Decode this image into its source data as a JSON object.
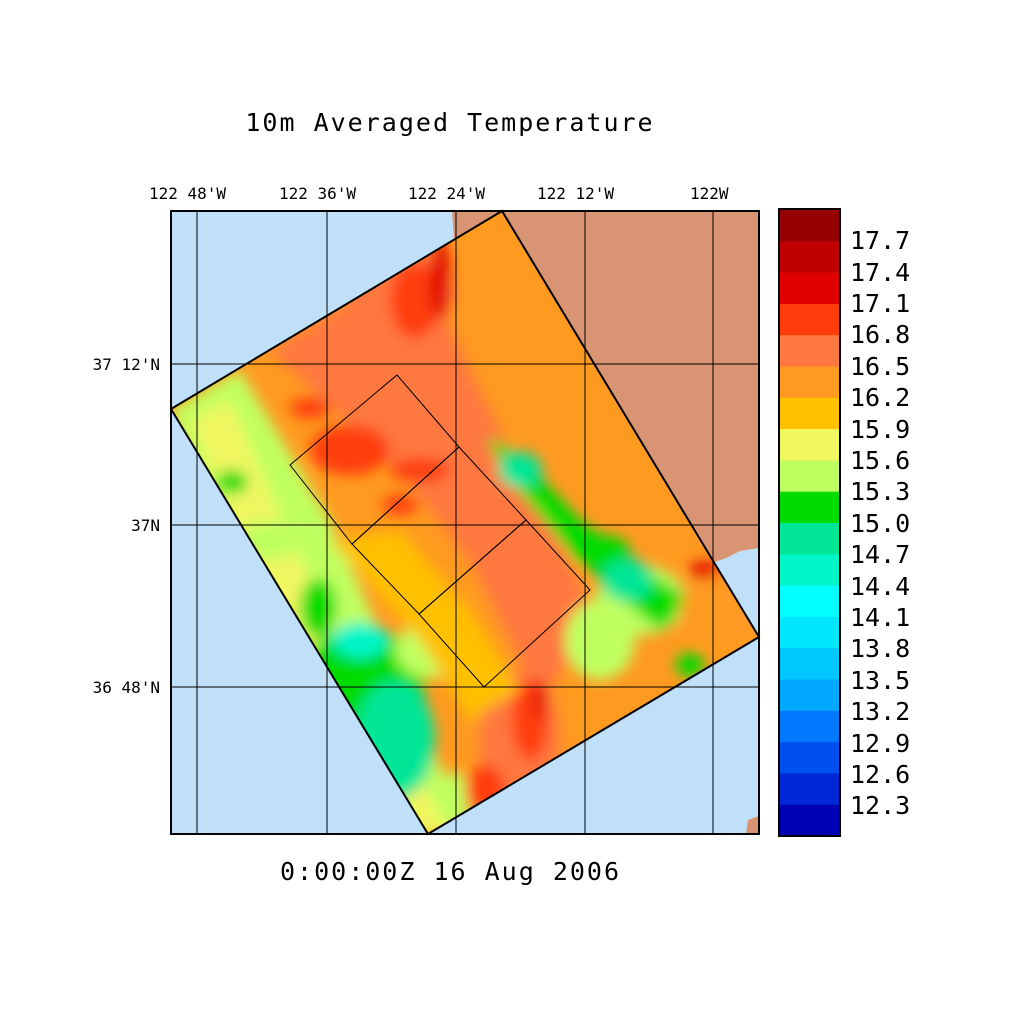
{
  "title": "10m Averaged Temperature",
  "timestamp": "0:00:00Z  16 Aug 2006",
  "longitude_labels": [
    "122 48'W",
    "122 36'W",
    "122 24'W",
    "122 12'W",
    "122W"
  ],
  "latitude_labels": [
    "37 12'N",
    "37N",
    "36 48'N"
  ],
  "colorbar": {
    "labels": [
      "17.7",
      "17.4",
      "17.1",
      "16.8",
      "16.5",
      "16.2",
      "15.9",
      "15.6",
      "15.3",
      "15.0",
      "14.7",
      "14.4",
      "14.1",
      "13.8",
      "13.5",
      "13.2",
      "12.9",
      "12.6",
      "12.3"
    ],
    "colors": [
      "#960000",
      "#c00000",
      "#e10000",
      "#ff3c0a",
      "#ff7840",
      "#ff9a20",
      "#ffc000",
      "#f0f760",
      "#c0ff60",
      "#00dc00",
      "#00e696",
      "#00f5c8",
      "#00ffff",
      "#00e6ff",
      "#00c8ff",
      "#00a8ff",
      "#0078ff",
      "#0050f0",
      "#0028d8",
      "#0000b4"
    ]
  },
  "map_colors": {
    "ocean": "#bfe0f8",
    "land": "#d99573"
  },
  "chart_data": {
    "type": "heatmap",
    "title": "10m Averaged Temperature",
    "variable": "10m averaged sea temperature",
    "time": "0:00:00Z 16 Aug 2006",
    "lon_ticks": [
      "122 48'W",
      "122 36'W",
      "122 24'W",
      "122 12'W",
      "122W"
    ],
    "lat_ticks": [
      "37 12'N",
      "37N",
      "36 48'N"
    ],
    "color_levels": [
      12.3,
      12.6,
      12.9,
      13.2,
      13.5,
      13.8,
      14.1,
      14.4,
      14.7,
      15.0,
      15.3,
      15.6,
      15.9,
      16.2,
      16.5,
      16.8,
      17.1,
      17.4,
      17.7
    ]
  }
}
